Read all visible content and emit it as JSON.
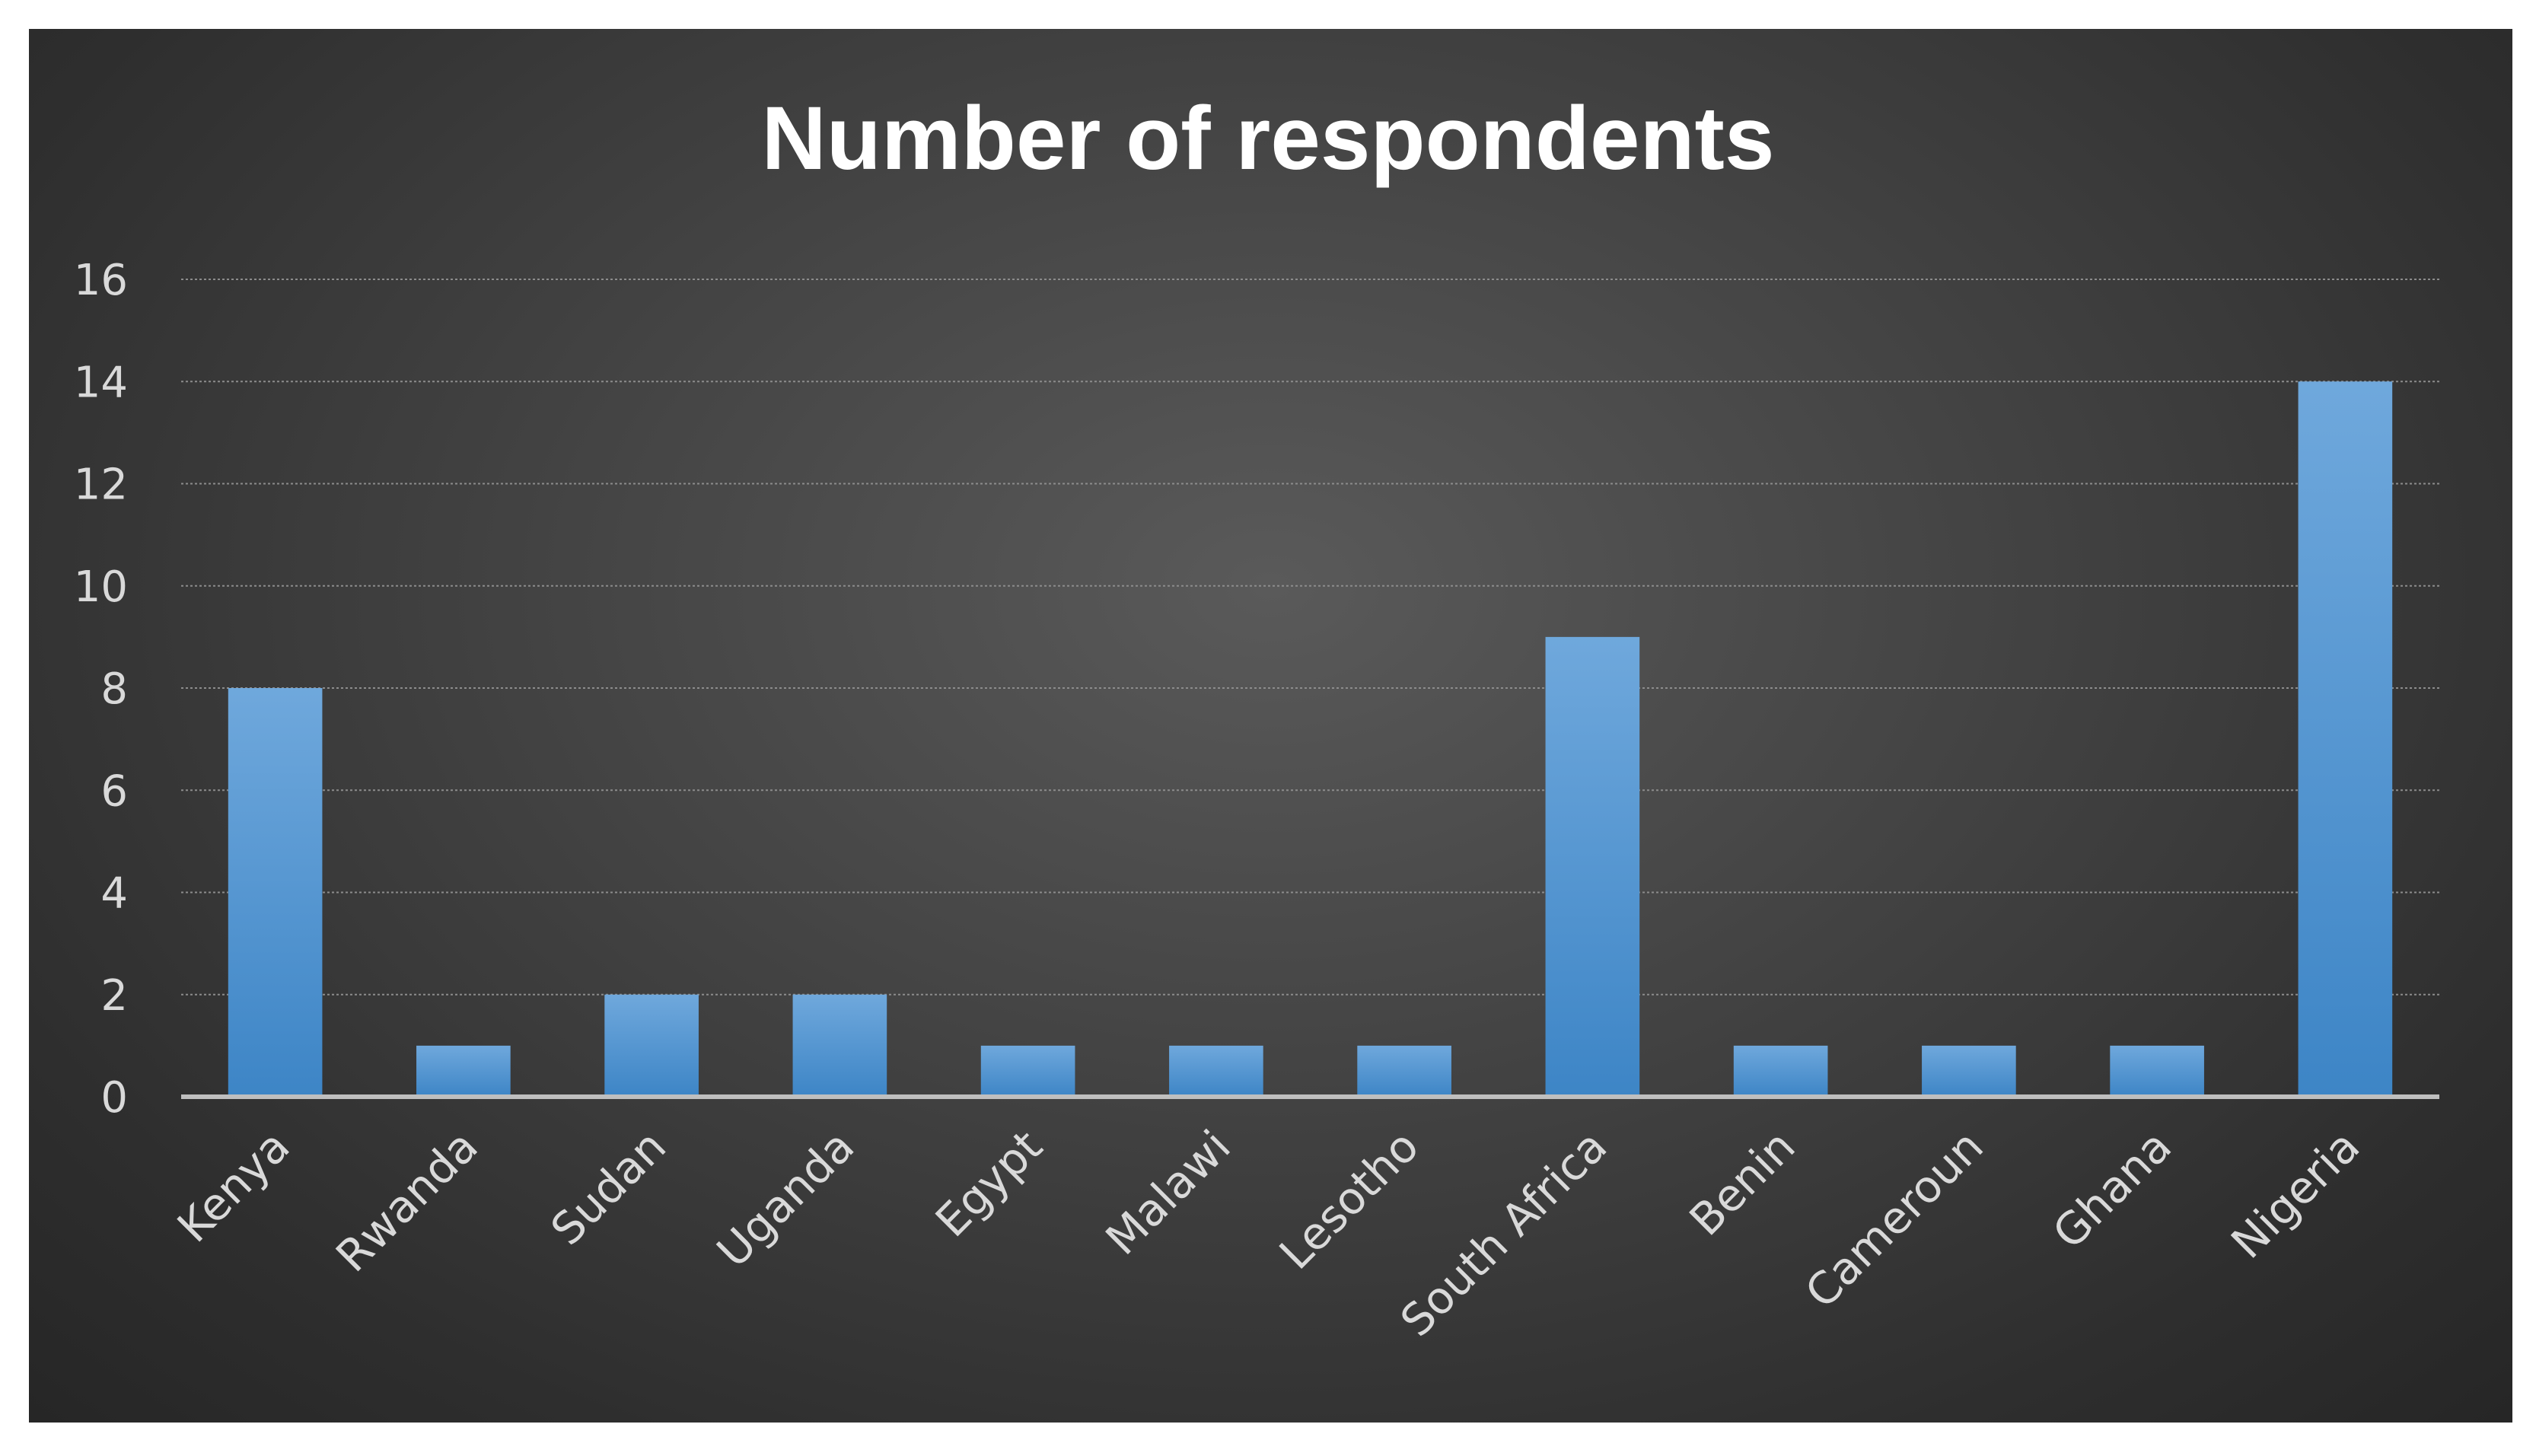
{
  "chart_data": {
    "type": "bar",
    "title": "Number of respondents",
    "xlabel": "",
    "ylabel": "",
    "categories": [
      "Kenya",
      "Rwanda",
      "Sudan",
      "Uganda",
      "Egypt",
      "Malawi",
      "Lesotho",
      "South Africa",
      "Benin",
      "Cameroun",
      "Ghana",
      "Nigeria"
    ],
    "values": [
      8,
      1,
      2,
      2,
      1,
      1,
      1,
      9,
      1,
      1,
      1,
      14
    ],
    "ylim": [
      0,
      16
    ],
    "yticks": [
      "0",
      "2",
      "4",
      "6",
      "8",
      "10",
      "12",
      "14",
      "16"
    ],
    "grid": true,
    "legend": "none",
    "colors": {
      "bar_top": "#6fa8dc",
      "bar_bottom": "#3d85c6",
      "background_center": "#5a5a5a",
      "background_edge": "#262626",
      "text": "#d9d9d9",
      "title": "#ffffff"
    }
  }
}
